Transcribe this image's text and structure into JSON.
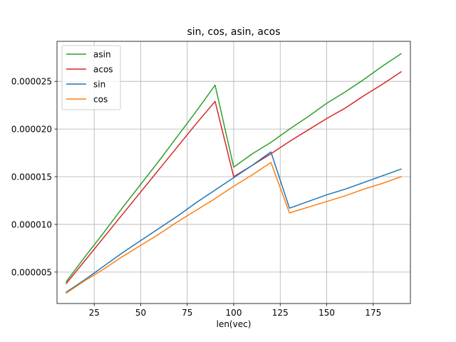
{
  "chart_data": {
    "type": "line",
    "title": "sin, cos, asin, acos",
    "xlabel": "len(vec)",
    "ylabel": "",
    "xlim": [
      5,
      195
    ],
    "ylim": [
      1.7e-06,
      2.92e-05
    ],
    "x_ticks": [
      25,
      50,
      75,
      100,
      125,
      150,
      175
    ],
    "x_tick_labels": [
      "25",
      "50",
      "75",
      "100",
      "125",
      "150",
      "175"
    ],
    "y_ticks": [
      5e-06,
      1e-05,
      1.5e-05,
      2e-05,
      2.5e-05
    ],
    "y_tick_labels": [
      "0.000005",
      "0.000010",
      "0.000015",
      "0.000020",
      "0.000025"
    ],
    "grid": true,
    "legend_position": "top-left",
    "series": [
      {
        "name": "asin",
        "color": "#2ca02c",
        "x": [
          10,
          20,
          30,
          40,
          50,
          60,
          70,
          80,
          90,
          100,
          110,
          120,
          130,
          140,
          150,
          160,
          170,
          180,
          190
        ],
        "y": [
          4e-06,
          6.6e-06,
          9.1e-06,
          1.17e-05,
          1.42e-05,
          1.67e-05,
          1.93e-05,
          2.19e-05,
          2.46e-05,
          1.6e-05,
          1.74e-05,
          1.86e-05,
          2e-05,
          2.13e-05,
          2.27e-05,
          2.39e-05,
          2.52e-05,
          2.66e-05,
          2.79e-05
        ]
      },
      {
        "name": "acos",
        "color": "#d62728",
        "x": [
          10,
          20,
          30,
          40,
          50,
          60,
          70,
          80,
          90,
          100,
          110,
          120,
          130,
          140,
          150,
          160,
          170,
          180,
          190
        ],
        "y": [
          3.8e-06,
          6.2e-06,
          8.6e-06,
          1.1e-05,
          1.34e-05,
          1.58e-05,
          1.82e-05,
          2.06e-05,
          2.29e-05,
          1.5e-05,
          1.62e-05,
          1.74e-05,
          1.87e-05,
          1.99e-05,
          2.11e-05,
          2.22e-05,
          2.35e-05,
          2.47e-05,
          2.6e-05
        ]
      },
      {
        "name": "sin",
        "color": "#1f77b4",
        "x": [
          10,
          20,
          30,
          40,
          50,
          60,
          70,
          80,
          90,
          100,
          110,
          120,
          130,
          140,
          150,
          160,
          170,
          180,
          190
        ],
        "y": [
          2.9e-06,
          4.2e-06,
          5.6e-06,
          7e-06,
          8.3e-06,
          9.6e-06,
          1.09e-05,
          1.23e-05,
          1.36e-05,
          1.49e-05,
          1.62e-05,
          1.76e-05,
          1.17e-05,
          1.24e-05,
          1.31e-05,
          1.37e-05,
          1.44e-05,
          1.51e-05,
          1.58e-05
        ]
      },
      {
        "name": "cos",
        "color": "#ff7f0e",
        "x": [
          10,
          20,
          30,
          40,
          50,
          60,
          70,
          80,
          90,
          100,
          110,
          120,
          130,
          140,
          150,
          160,
          170,
          180,
          190
        ],
        "y": [
          2.8e-06,
          4.1e-06,
          5.3e-06,
          6.6e-06,
          7.8e-06,
          9e-06,
          1.03e-05,
          1.15e-05,
          1.27e-05,
          1.4e-05,
          1.52e-05,
          1.65e-05,
          1.12e-05,
          1.18e-05,
          1.24e-05,
          1.3e-05,
          1.37e-05,
          1.43e-05,
          1.5e-05
        ]
      }
    ]
  }
}
